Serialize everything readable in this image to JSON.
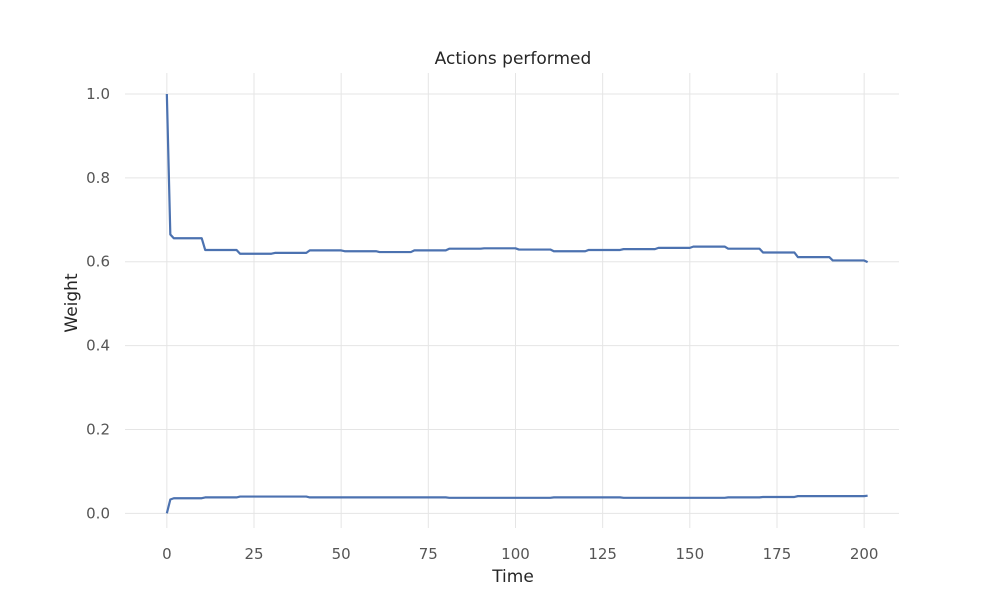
{
  "chart_data": {
    "type": "line",
    "title": "Actions performed",
    "xlabel": "Time",
    "ylabel": "Weight",
    "xlim": [
      -12,
      210
    ],
    "ylim": [
      -0.035,
      1.05
    ],
    "xticks": [
      0,
      25,
      50,
      75,
      100,
      125,
      150,
      175,
      200
    ],
    "yticks": [
      0.0,
      0.2,
      0.4,
      0.6,
      0.8,
      1.0
    ],
    "xtick_labels": [
      "0",
      "25",
      "50",
      "75",
      "100",
      "125",
      "150",
      "175",
      "200"
    ],
    "ytick_labels": [
      "0.0",
      "0.2",
      "0.4",
      "0.6",
      "0.8",
      "1.0"
    ],
    "grid": true,
    "series_color": "#4c72b0",
    "series": [
      {
        "x": [
          0,
          1,
          2,
          10,
          11,
          20,
          21,
          30,
          31,
          40,
          41,
          50,
          51,
          60,
          61,
          70,
          71,
          80,
          81,
          90,
          91,
          100,
          101,
          110,
          111,
          120,
          121,
          130,
          131,
          140,
          141,
          150,
          151,
          160,
          161,
          170,
          171,
          180,
          181,
          190,
          191,
          200,
          201
        ],
        "y": [
          1.0,
          0.665,
          0.656,
          0.656,
          0.628,
          0.628,
          0.619,
          0.619,
          0.621,
          0.621,
          0.627,
          0.627,
          0.625,
          0.625,
          0.623,
          0.623,
          0.627,
          0.627,
          0.631,
          0.631,
          0.632,
          0.632,
          0.629,
          0.629,
          0.625,
          0.625,
          0.628,
          0.628,
          0.63,
          0.63,
          0.633,
          0.633,
          0.636,
          0.636,
          0.631,
          0.631,
          0.622,
          0.622,
          0.611,
          0.611,
          0.603,
          0.603,
          0.599
        ]
      },
      {
        "x": [
          0,
          1,
          2,
          10,
          11,
          20,
          21,
          30,
          31,
          40,
          41,
          50,
          51,
          60,
          61,
          70,
          71,
          80,
          81,
          90,
          91,
          100,
          101,
          110,
          111,
          120,
          121,
          130,
          131,
          140,
          141,
          150,
          151,
          160,
          161,
          170,
          171,
          180,
          181,
          190,
          191,
          200,
          201
        ],
        "y": [
          0.0,
          0.033,
          0.036,
          0.036,
          0.038,
          0.038,
          0.04,
          0.04,
          0.04,
          0.04,
          0.038,
          0.038,
          0.038,
          0.038,
          0.038,
          0.038,
          0.038,
          0.038,
          0.037,
          0.037,
          0.037,
          0.037,
          0.037,
          0.037,
          0.038,
          0.038,
          0.038,
          0.038,
          0.037,
          0.037,
          0.037,
          0.037,
          0.037,
          0.037,
          0.038,
          0.038,
          0.039,
          0.039,
          0.041,
          0.041,
          0.041,
          0.041,
          0.042
        ]
      }
    ]
  }
}
